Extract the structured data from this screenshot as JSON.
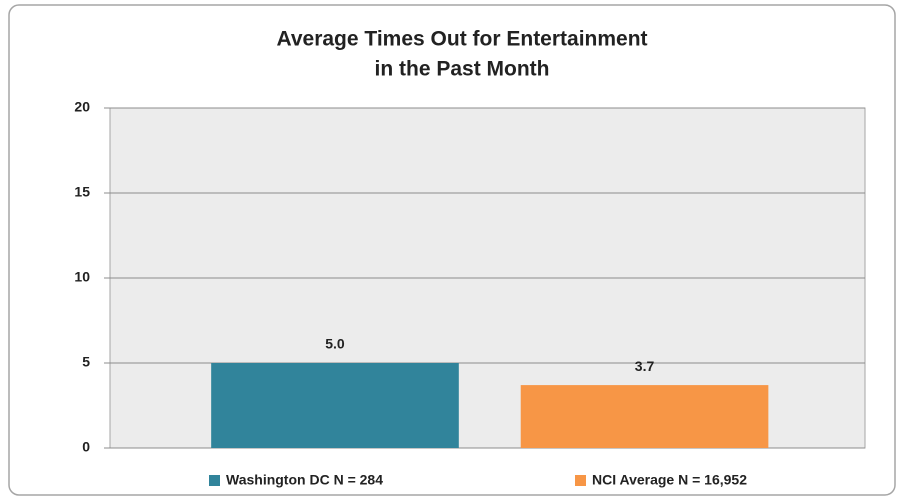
{
  "chart_data": {
    "type": "bar",
    "title": [
      "Average Times Out for Entertainment",
      "in the Past Month"
    ],
    "categories": [
      null
    ],
    "series": [
      {
        "name": "Washington DC N = 284",
        "color": "#31849b",
        "values": [
          5.0
        ],
        "value_labels": [
          "5.0"
        ]
      },
      {
        "name": "NCI Average N = 16,952",
        "color": "#f79646",
        "values": [
          3.7
        ],
        "value_labels": [
          "3.7"
        ]
      }
    ],
    "ylim": [
      0,
      20
    ],
    "yticks": [
      0,
      5,
      10,
      15,
      20
    ],
    "grid": true,
    "legend": "bottom"
  }
}
